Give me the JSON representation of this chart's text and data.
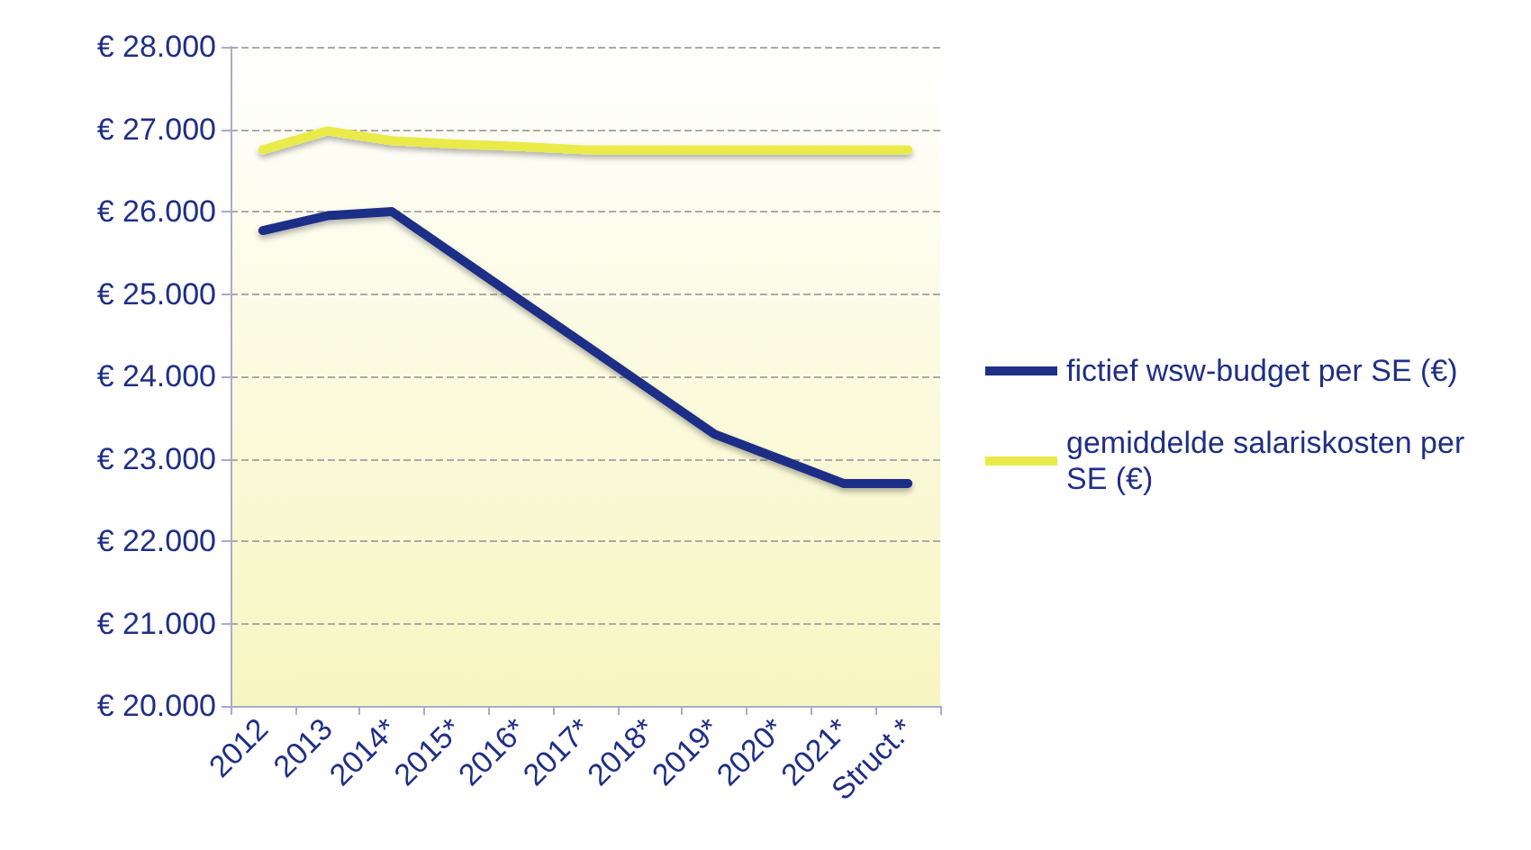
{
  "chart_data": {
    "type": "line",
    "categories": [
      "2012",
      "2013",
      "2014*",
      "2015*",
      "2016*",
      "2017*",
      "2018*",
      "2019*",
      "2020*",
      "2021*",
      "Struct.*"
    ],
    "series": [
      {
        "name": "fictief wsw-budget per SE (€)",
        "color": "#1f2f86",
        "values": [
          25770,
          25950,
          26000,
          25460,
          24920,
          24380,
          23840,
          23300,
          23000,
          22700,
          22700
        ]
      },
      {
        "name": "gemiddelde salariskosten per SE (€)",
        "color": "#eaea4a",
        "values": [
          26750,
          26980,
          26860,
          26820,
          26790,
          26750,
          26750,
          26750,
          26750,
          26750,
          26750
        ]
      }
    ],
    "ylim": [
      20000,
      28000
    ],
    "yticks": [
      {
        "value": 20000,
        "label": "€ 20.000"
      },
      {
        "value": 21000,
        "label": "€ 21.000"
      },
      {
        "value": 22000,
        "label": "€ 22.000"
      },
      {
        "value": 23000,
        "label": "€ 23.000"
      },
      {
        "value": 24000,
        "label": "€ 24.000"
      },
      {
        "value": 25000,
        "label": "€ 25.000"
      },
      {
        "value": 26000,
        "label": "€ 26.000"
      },
      {
        "value": 27000,
        "label": "€ 27.000"
      },
      {
        "value": 28000,
        "label": "€ 28.000"
      }
    ],
    "grid": "y",
    "legend": "right",
    "marker": "none",
    "line_style": "solid"
  }
}
